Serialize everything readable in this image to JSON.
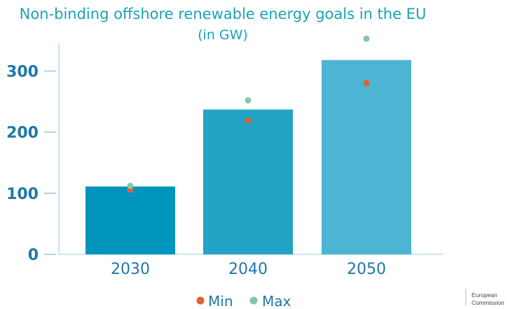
{
  "chart_data": {
    "type": "bar",
    "title": "Non-binding offshore renewable energy goals in the EU",
    "subtitle": "(in GW)",
    "categories": [
      "2030",
      "2040",
      "2050"
    ],
    "values": [
      111,
      237,
      318
    ],
    "bar_colors": [
      "#0095bd",
      "#23a3c6",
      "#4cb5d3"
    ],
    "markers": [
      {
        "name": "Min",
        "color": "#e0622e",
        "values": [
          106,
          219,
          280
        ]
      },
      {
        "name": "Max",
        "color": "#7fc9a6",
        "values": [
          112,
          252,
          353
        ]
      }
    ],
    "yticks": [
      0,
      100,
      200,
      300
    ],
    "ylim": [
      0,
      360
    ],
    "grid": false,
    "legend_position": "bottom-center"
  },
  "logo": {
    "line1": "European",
    "line2": "Commission"
  }
}
